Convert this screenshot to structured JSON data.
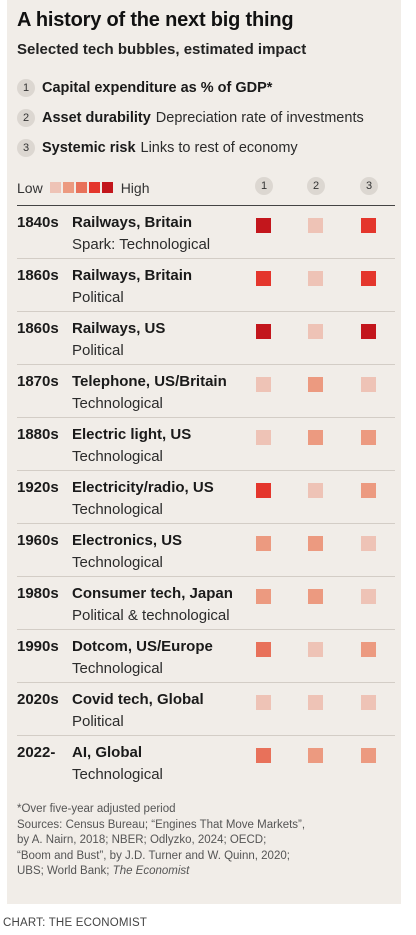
{
  "title": "A history of the next big thing",
  "subtitle": "Selected tech bubbles, estimated impact",
  "key": [
    {
      "num": "1",
      "name": "Capital expenditure as % of GDP*",
      "desc": ""
    },
    {
      "num": "2",
      "name": "Asset durability",
      "desc": "Depreciation rate of investments"
    },
    {
      "num": "3",
      "name": "Systemic risk",
      "desc": "Links to rest of economy"
    }
  ],
  "legend": {
    "low": "Low",
    "high": "High"
  },
  "colors": {
    "scale": [
      "#eec3b6",
      "#ec9a80",
      "#e8715a",
      "#e4362c",
      "#c3161c"
    ]
  },
  "columns": [
    "1",
    "2",
    "3"
  ],
  "chart_data": {
    "type": "heatmap",
    "scale": "Low to High (1 to 5)",
    "rows": [
      {
        "decade": "1840s",
        "label": "Railways, Britain",
        "spark": "Spark: Technological",
        "values": [
          5,
          1,
          4
        ]
      },
      {
        "decade": "1860s",
        "label": "Railways, Britain",
        "spark": "Political",
        "values": [
          4,
          1,
          4
        ]
      },
      {
        "decade": "1860s",
        "label": "Railways, US",
        "spark": "Political",
        "values": [
          5,
          1,
          5
        ]
      },
      {
        "decade": "1870s",
        "label": "Telephone, US/Britain",
        "spark": "Technological",
        "values": [
          1,
          2,
          1
        ]
      },
      {
        "decade": "1880s",
        "label": "Electric light, US",
        "spark": "Technological",
        "values": [
          1,
          2,
          2
        ]
      },
      {
        "decade": "1920s",
        "label": "Electricity/radio, US",
        "spark": "Technological",
        "values": [
          4,
          1,
          2
        ]
      },
      {
        "decade": "1960s",
        "label": "Electronics, US",
        "spark": "Technological",
        "values": [
          2,
          2,
          1
        ]
      },
      {
        "decade": "1980s",
        "label": "Consumer tech, Japan",
        "spark": "Political & technological",
        "values": [
          2,
          2,
          1
        ]
      },
      {
        "decade": "1990s",
        "label": "Dotcom, US/Europe",
        "spark": "Technological",
        "values": [
          3,
          1,
          2
        ]
      },
      {
        "decade": "2020s",
        "label": "Covid tech, Global",
        "spark": "Political",
        "values": [
          1,
          1,
          1
        ]
      },
      {
        "decade": "2022-",
        "label": "AI, Global",
        "spark": "Technological",
        "values": [
          3,
          2,
          2
        ]
      }
    ]
  },
  "notes": {
    "footnote": "*Over five-year adjusted period",
    "sources": [
      "Sources: Census Bureau; “Engines That Move Markets”,",
      "by A. Nairn, 2018; NBER; Odlyzko, 2024; OECD;",
      "“Boom and Bust”, by J.D. Turner and W. Quinn, 2020;",
      "UBS; World Bank;"
    ],
    "sources_italic": "The Economist"
  },
  "credit": "CHART: THE ECONOMIST"
}
